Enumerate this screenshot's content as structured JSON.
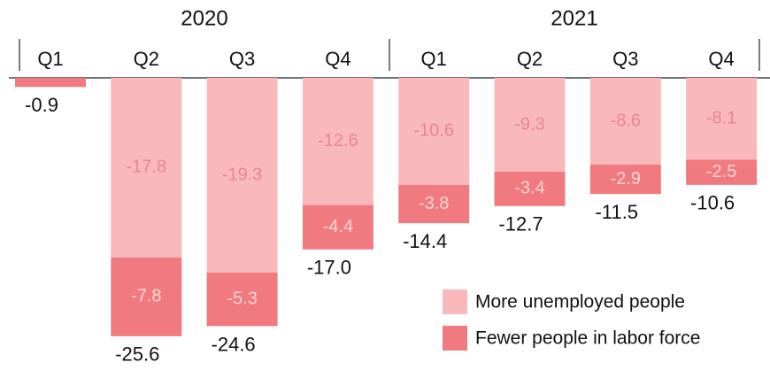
{
  "chart_data": {
    "type": "stacked-bar",
    "groups": [
      "2020",
      "2021"
    ],
    "categories": [
      "Q1",
      "Q2",
      "Q3",
      "Q4",
      "Q1",
      "Q2",
      "Q3",
      "Q4"
    ],
    "series": [
      {
        "name": "More unemployed people",
        "color": "#f9b9ba",
        "label_color": "#e98690",
        "values": [
          null,
          -17.8,
          -19.3,
          -12.6,
          -10.6,
          -9.3,
          -8.6,
          -8.1
        ]
      },
      {
        "name": "Fewer people in labor force",
        "color": "#f07a80",
        "label_color": "#fcd6d6",
        "values": [
          null,
          -7.8,
          -5.3,
          -4.4,
          -3.8,
          -3.4,
          -2.9,
          -2.5
        ]
      }
    ],
    "totals": {
      "values": [
        -0.9,
        -25.6,
        -24.6,
        -17,
        -14.4,
        -12.7,
        -11.5,
        -10.6
      ],
      "value_labels": [
        "-0.9",
        "-25.6",
        "-24.6",
        "-17.0",
        "-14.4",
        "-12.7",
        "-11.5",
        "-10.6"
      ]
    }
  }
}
